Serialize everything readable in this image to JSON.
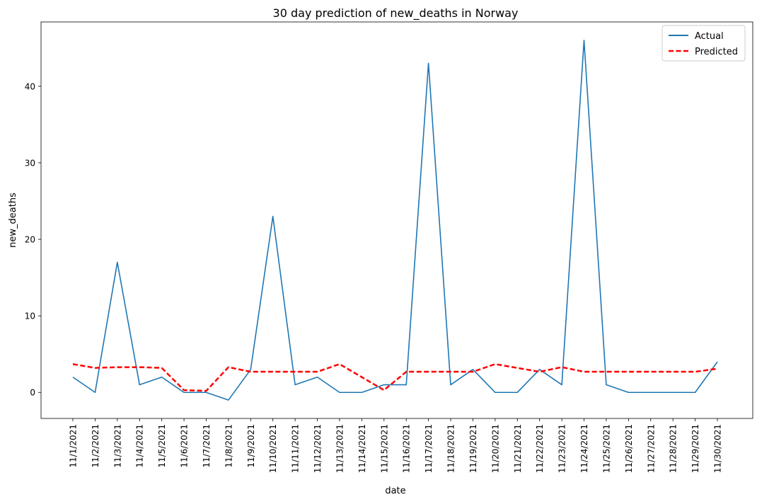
{
  "chart_data": {
    "type": "line",
    "title": "30 day prediction of new_deaths in Norway",
    "xlabel": "date",
    "ylabel": "new_deaths",
    "categories": [
      "11/1/2021",
      "11/2/2021",
      "11/3/2021",
      "11/4/2021",
      "11/5/2021",
      "11/6/2021",
      "11/7/2021",
      "11/8/2021",
      "11/9/2021",
      "11/10/2021",
      "11/11/2021",
      "11/12/2021",
      "11/13/2021",
      "11/14/2021",
      "11/15/2021",
      "11/16/2021",
      "11/17/2021",
      "11/18/2021",
      "11/19/2021",
      "11/20/2021",
      "11/21/2021",
      "11/22/2021",
      "11/23/2021",
      "11/24/2021",
      "11/25/2021",
      "11/26/2021",
      "11/27/2021",
      "11/28/2021",
      "11/29/2021",
      "11/30/2021"
    ],
    "series": [
      {
        "name": "Actual",
        "color": "#1f77b4",
        "style": "solid",
        "values": [
          2,
          0,
          17,
          1,
          2,
          0,
          0,
          -1,
          3,
          23,
          1,
          2,
          0,
          0,
          1,
          1,
          43,
          1,
          3,
          0,
          0,
          3,
          1,
          46,
          1,
          0,
          0,
          0,
          0,
          4
        ]
      },
      {
        "name": "Predicted",
        "color": "#ff0000",
        "style": "dashed",
        "values": [
          3.7,
          3.2,
          3.3,
          3.3,
          3.2,
          0.3,
          0.2,
          3.3,
          2.7,
          2.7,
          2.7,
          2.7,
          3.7,
          2.0,
          0.3,
          2.7,
          2.7,
          2.7,
          2.7,
          3.7,
          3.2,
          2.7,
          3.3,
          2.7,
          2.7,
          2.7,
          2.7,
          2.7,
          2.7,
          3.1
        ]
      }
    ],
    "yticks": [
      0,
      10,
      20,
      30,
      40
    ],
    "ylim": [
      -3.4,
      48.4
    ],
    "grid": false,
    "legend": "top-right"
  }
}
